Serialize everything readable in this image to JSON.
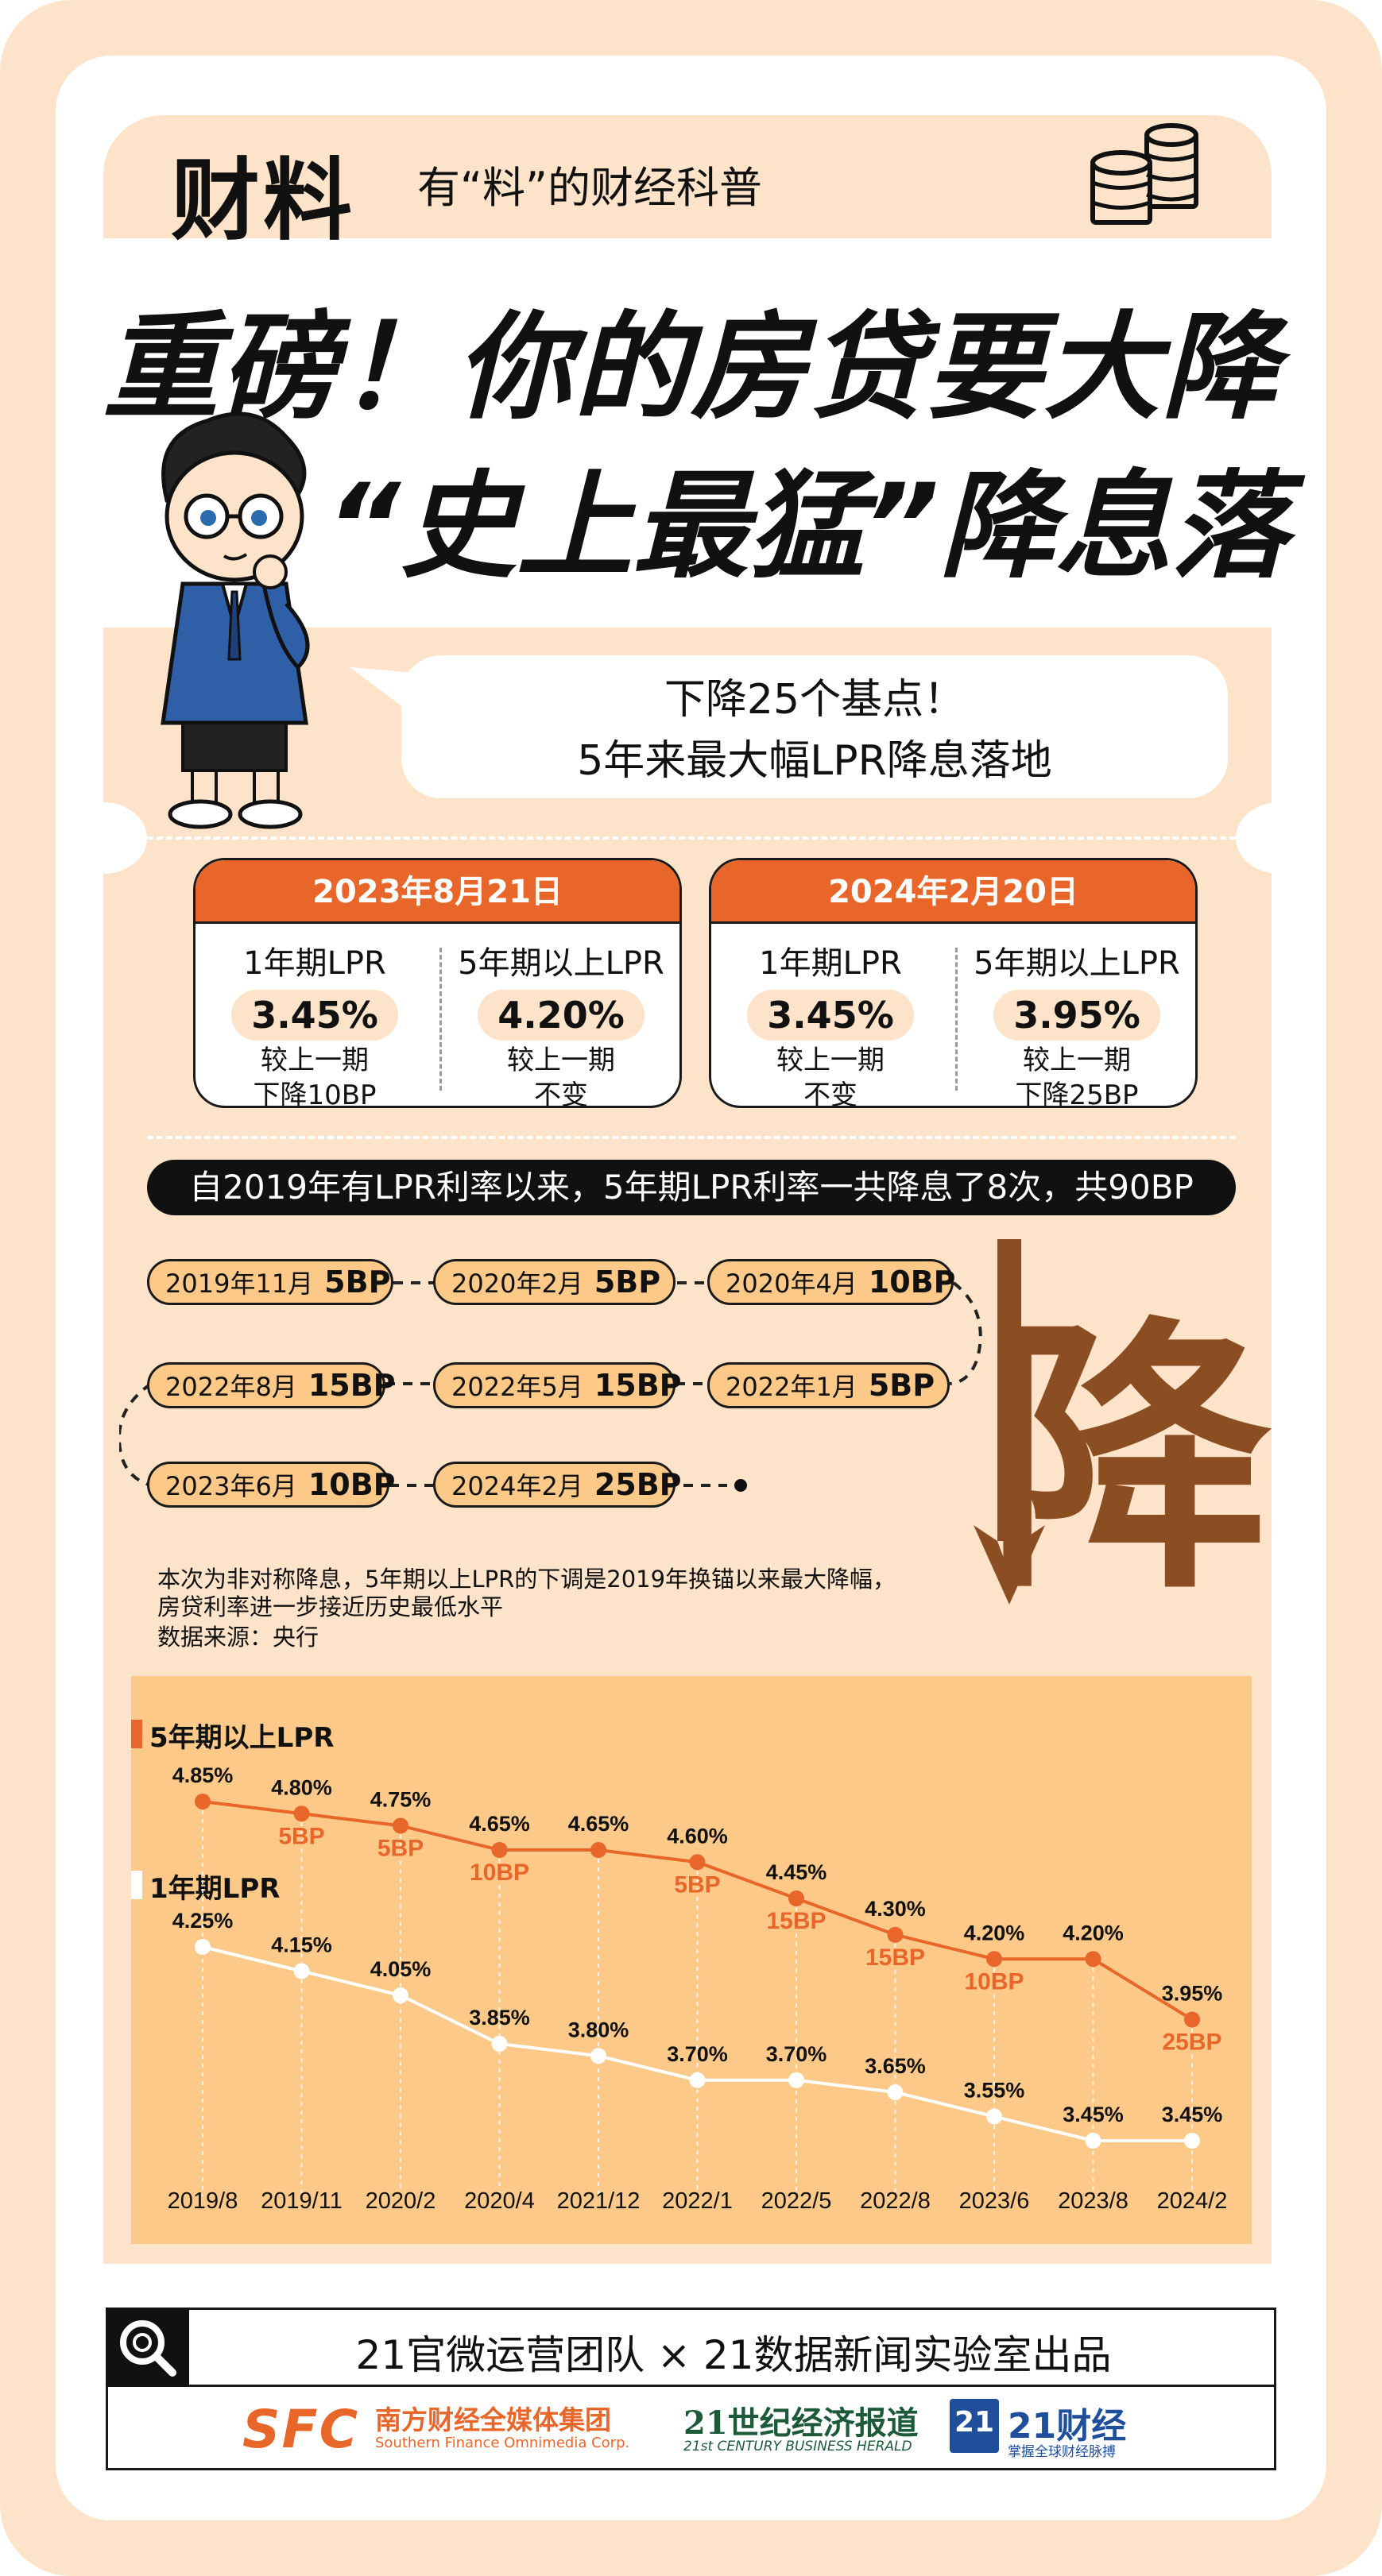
{
  "header": {
    "brand": "财料",
    "slogan": "有“料”的财经科普",
    "coins_icon": "coins-icon"
  },
  "headline": {
    "line1": "重磅！你的房贷要大降",
    "line2": "“史上最猛”降息落地"
  },
  "speech": {
    "line1": "下降25个基点！",
    "line2": "5年来最大幅LPR降息落地"
  },
  "cards": [
    {
      "date": "2023年8月21日",
      "cols": [
        {
          "title": "1年期LPR",
          "rate": "3.45%",
          "note1": "较上一期",
          "note2": "下降10BP"
        },
        {
          "title": "5年期以上LPR",
          "rate": "4.20%",
          "note1": "较上一期",
          "note2": "不变"
        }
      ]
    },
    {
      "date": "2024年2月20日",
      "cols": [
        {
          "title": "1年期LPR",
          "rate": "3.45%",
          "note1": "较上一期",
          "note2": "不变"
        },
        {
          "title": "5年期以上LPR",
          "rate": "3.95%",
          "note1": "较上一期",
          "note2": "下降25BP"
        }
      ]
    }
  ],
  "summary_bar": "自2019年有LPR利率以来，5年期LPR利率一共降息了8次，共90BP",
  "timeline": [
    {
      "date": "2019年11月",
      "bp": "5BP"
    },
    {
      "date": "2020年2月",
      "bp": "5BP"
    },
    {
      "date": "2020年4月",
      "bp": "10BP"
    },
    {
      "date": "2022年1月",
      "bp": "5BP"
    },
    {
      "date": "2022年5月",
      "bp": "15BP"
    },
    {
      "date": "2022年8月",
      "bp": "15BP"
    },
    {
      "date": "2023年6月",
      "bp": "10BP"
    },
    {
      "date": "2024年2月",
      "bp": "25BP"
    }
  ],
  "big_char": "降",
  "footnote": {
    "line1": "本次为非对称降息，5年期以上LPR的下调是2019年换锚以来最大降幅，",
    "line2": "房贷利率进一步接近历史最低水平",
    "source": "数据来源：央行"
  },
  "colors": {
    "accent": "#e9662a",
    "peach": "#fde3c9",
    "pill": "#fcc989",
    "brown": "#8b4d22",
    "line5y": "#e9662a",
    "line1y": "#ffffff"
  },
  "chart_data": {
    "type": "line",
    "categories": [
      "2019/8",
      "2019/11",
      "2020/2",
      "2020/4",
      "2021/12",
      "2022/1",
      "2022/5",
      "2022/8",
      "2023/6",
      "2023/8",
      "2024/2"
    ],
    "series": [
      {
        "name": "5年期以上LPR",
        "values": [
          4.85,
          4.8,
          4.75,
          4.65,
          4.65,
          4.6,
          4.45,
          4.3,
          4.2,
          4.2,
          3.95
        ],
        "labels": [
          "4.85%",
          "4.80%",
          "4.75%",
          "4.65%",
          "4.65%",
          "4.60%",
          "4.45%",
          "4.30%",
          "4.20%",
          "4.20%",
          "3.95%"
        ],
        "cuts": [
          "",
          "5BP",
          "5BP",
          "10BP",
          "",
          "5BP",
          "15BP",
          "15BP",
          "10BP",
          "",
          "25BP"
        ]
      },
      {
        "name": "1年期LPR",
        "values": [
          4.25,
          4.15,
          4.05,
          3.85,
          3.8,
          3.7,
          3.7,
          3.65,
          3.55,
          3.45,
          3.45
        ],
        "labels": [
          "4.25%",
          "4.15%",
          "4.05%",
          "3.85%",
          "3.80%",
          "3.70%",
          "3.70%",
          "3.65%",
          "3.55%",
          "3.45%",
          "3.45%"
        ]
      }
    ]
  },
  "footer": {
    "title": "21官微运营团队 × 21数据新闻实验室出品",
    "search_icon": "search-icon",
    "logo1_mark": "SFC",
    "logo1_cn": "南方财经全媒体集团",
    "logo1_en": "Southern Finance Omnimedia Corp.",
    "logo2_cn": "21世纪经济报道",
    "logo2_en": "21st CENTURY BUSINESS HERALD",
    "logo3_mark": "21",
    "logo3_cn": "21财经",
    "logo3_sub": "掌握全球财经脉搏"
  }
}
